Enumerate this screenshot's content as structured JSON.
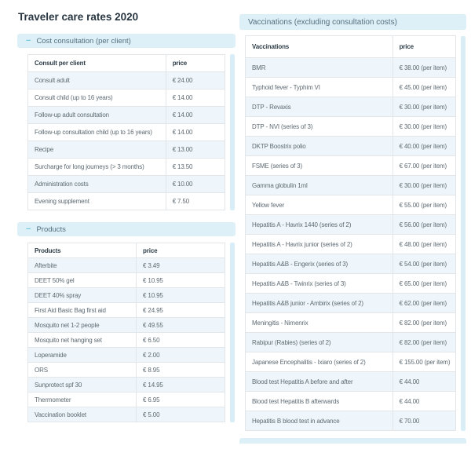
{
  "page": {
    "title": "Traveler care rates 2020"
  },
  "consult_section": {
    "header": "Cost consultation (per client)",
    "collapse_icon": "−",
    "columns": [
      "Consult per client",
      "price"
    ],
    "rows": [
      [
        "Consult adult",
        "€ 24.00"
      ],
      [
        "Consult child (up to 16 years)",
        "€ 14.00"
      ],
      [
        "Follow-up adult consultation",
        "€ 14.00"
      ],
      [
        "Follow-up consultation child (up to 16 years)",
        "€ 14.00"
      ],
      [
        "Recipe",
        "€ 13.00"
      ],
      [
        "Surcharge for long journeys (> 3 months)",
        "€ 13.50"
      ],
      [
        "Administration costs",
        "€ 10.00"
      ],
      [
        "Evening supplement",
        "€ 7.50"
      ]
    ]
  },
  "products_section": {
    "header": "Products",
    "collapse_icon": "−",
    "columns": [
      "Products",
      "price"
    ],
    "rows": [
      [
        "Afterbite",
        "€ 3.49"
      ],
      [
        "DEET 50% gel",
        "€ 10.95"
      ],
      [
        "DEET 40% spray",
        "€ 10.95"
      ],
      [
        "First Aid Basic Bag first aid",
        "€ 24.95"
      ],
      [
        "Mosquito net 1-2 people",
        "€ 49.55"
      ],
      [
        "Mosquito net hanging set",
        "€ 6.50"
      ],
      [
        "Loperamide",
        "€ 2.00"
      ],
      [
        "ORS",
        "€ 8.95"
      ],
      [
        "Sunprotect spf 30",
        "€ 14.95"
      ],
      [
        "Thermometer",
        "€ 6.95"
      ],
      [
        "Vaccination booklet",
        "€ 5.00"
      ]
    ]
  },
  "vaccinations_section": {
    "header": "Vaccinations (excluding consultation costs)",
    "columns": [
      "Vaccinations",
      "price"
    ],
    "rows": [
      [
        "BMR",
        "€ 38.00 (per item)"
      ],
      [
        "Typhoid fever - Typhim VI",
        "€ 45.00 (per item)"
      ],
      [
        "DTP - Revaxis",
        "€ 30.00 (per item)"
      ],
      [
        "DTP - NVI (series of 3)",
        "€ 30.00 (per item)"
      ],
      [
        "DKTP Boostrix polio",
        "€ 40.00 (per item)"
      ],
      [
        "FSME (series of 3)",
        "€ 67.00 (per item)"
      ],
      [
        "Gamma globulin 1ml",
        "€ 30.00 (per item)"
      ],
      [
        "Yellow fever",
        "€ 55.00 (per item)"
      ],
      [
        "Hepatitis A - Havrix 1440 (series of 2)",
        "€ 56.00 (per item)"
      ],
      [
        "Hepatitis A - Havrix junior (series of 2)",
        "€ 48.00 (per item)"
      ],
      [
        "Hepatitis A&B - Engerix (series of 3)",
        "€ 54.00 (per item)"
      ],
      [
        "Hepatitis A&B - Twinrix (series of 3)",
        "€ 65.00 (per item)"
      ],
      [
        "Hepatitis A&B junior - Ambirix (series of 2)",
        "€ 62.00 (per item)"
      ],
      [
        "Meningitis - Nimenrix",
        "€ 82.00 (per item)"
      ],
      [
        "Rabipur (Rabies) (series of 2)",
        "€ 82.00 (per item)"
      ],
      [
        "Japanese Encephalitis - Ixiaro (series of 2)",
        "€ 155.00 (per item)"
      ],
      [
        "Blood test Hepatitis A before and after",
        "€ 44.00"
      ],
      [
        "Blood test Hepatitis B afterwards",
        "€ 44.00"
      ],
      [
        "Hepatitis B blood test in advance",
        "€ 70.00"
      ]
    ]
  },
  "colors": {
    "section_header_bg": "#ddeff7",
    "section_header_text": "#54707e",
    "collapse_icon": "#74c8dc",
    "row_stripe": "#eef6fb",
    "table_border": "#e2e6e8",
    "title_text": "#273540",
    "cell_text": "#5d6a72"
  }
}
